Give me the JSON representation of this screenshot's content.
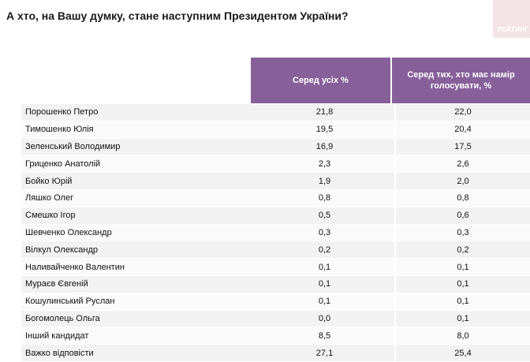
{
  "title": "А хто, на Вашу думку, стане наступним Президентом України?",
  "logo": "РЕЙТИНГ",
  "headers": {
    "col1": "Серед усіх %",
    "col2_line1": "Серед тих, хто має намір",
    "col2_line2": "голосувати, %"
  },
  "rows": [
    {
      "name": "Порошенко Петро",
      "all": "21,8",
      "voters": "22,0"
    },
    {
      "name": "Тимошенко Юлія",
      "all": "19,5",
      "voters": "20,4"
    },
    {
      "name": "Зеленський Володимир",
      "all": "16,9",
      "voters": "17,5"
    },
    {
      "name": "Гриценко Анатолій",
      "all": "2,3",
      "voters": "2,6"
    },
    {
      "name": "Бойко Юрій",
      "all": "1,9",
      "voters": "2,0"
    },
    {
      "name": "Ляшко Олег",
      "all": "0,8",
      "voters": "0,8"
    },
    {
      "name": "Смешко Ігор",
      "all": "0,5",
      "voters": "0,6"
    },
    {
      "name": "Шевченко Олександр",
      "all": "0,3",
      "voters": "0,3"
    },
    {
      "name": "Вілкул Олександр",
      "all": "0,2",
      "voters": "0,2"
    },
    {
      "name": "Наливайченко Валентин",
      "all": "0,1",
      "voters": "0,1"
    },
    {
      "name": "Мураєв Євгеній",
      "all": "0,1",
      "voters": "0,1"
    },
    {
      "name": "Кошулинський Руслан",
      "all": "0,1",
      "voters": "0,1"
    },
    {
      "name": "Богомолець Ольга",
      "all": "0,0",
      "voters": "0,1"
    },
    {
      "name": "Інший кандидат",
      "all": "8,5",
      "voters": "8,0"
    },
    {
      "name": "Важко відповісти",
      "all": "27,1",
      "voters": "25,4"
    }
  ]
}
